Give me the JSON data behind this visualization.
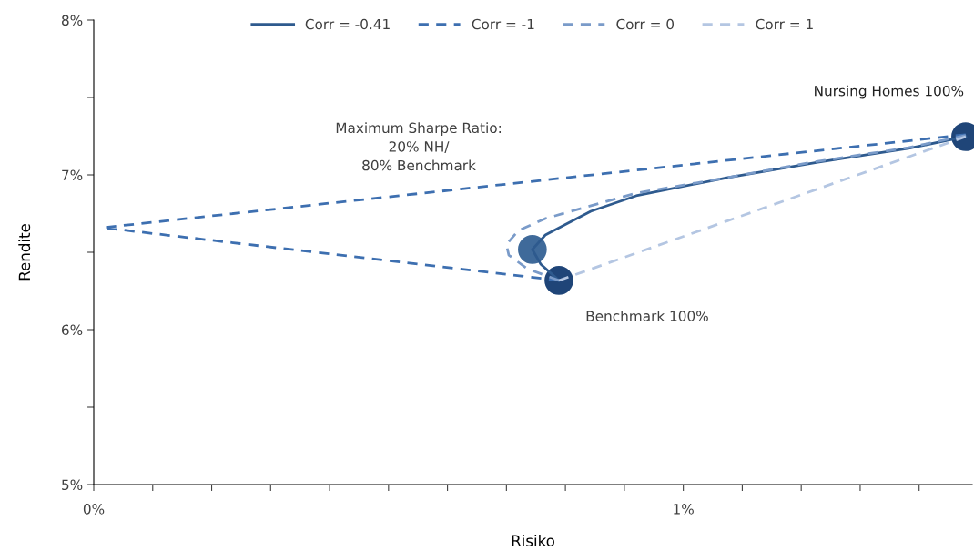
{
  "chart_data": {
    "type": "line",
    "xlabel": "Risiko",
    "ylabel": "Rendite",
    "xlim": [
      0,
      1.49
    ],
    "ylim": [
      5,
      8
    ],
    "xticks": [
      {
        "value": 0,
        "label": "0%"
      },
      {
        "value": 0.1,
        "label": null
      },
      {
        "value": 0.2,
        "label": null
      },
      {
        "value": 0.3,
        "label": null
      },
      {
        "value": 0.4,
        "label": null
      },
      {
        "value": 0.5,
        "label": null
      },
      {
        "value": 0.6,
        "label": null
      },
      {
        "value": 0.7,
        "label": null
      },
      {
        "value": 0.8,
        "label": null
      },
      {
        "value": 0.9,
        "label": null
      },
      {
        "value": 1,
        "label": "1%"
      },
      {
        "value": 1.1,
        "label": null
      },
      {
        "value": 1.2,
        "label": null
      },
      {
        "value": 1.3,
        "label": null
      },
      {
        "value": 1.4,
        "label": null
      }
    ],
    "yticks": [
      {
        "value": 5,
        "label": "5%"
      },
      {
        "value": 5.5,
        "label": null
      },
      {
        "value": 6,
        "label": "6%"
      },
      {
        "value": 6.5,
        "label": null
      },
      {
        "value": 7,
        "label": "7%"
      },
      {
        "value": 7.5,
        "label": null
      },
      {
        "value": 8,
        "label": "8%"
      }
    ],
    "grid": false,
    "legend": "top",
    "series": [
      {
        "name": "Corr = -0.41",
        "color": "#2e5a8e",
        "line_style": "solid",
        "marker": "none",
        "x": [
          0.789,
          0.758,
          0.744,
          0.766,
          0.843,
          0.92,
          1.074,
          1.228,
          1.382,
          1.479
        ],
        "values": [
          6.318,
          6.424,
          6.518,
          6.612,
          6.765,
          6.865,
          6.982,
          7.082,
          7.171,
          7.247
        ]
      },
      {
        "name": "Corr = -1",
        "color": "#3d6fb0",
        "line_style": "dashed",
        "marker": "none",
        "x": [
          0.789,
          0.015,
          1.479
        ],
        "values": [
          6.318,
          6.659,
          7.26
        ]
      },
      {
        "name": "Corr = 0",
        "color": "#7a9bc9",
        "line_style": "dashed",
        "marker": "none",
        "x": [
          0.789,
          0.735,
          0.704,
          0.7,
          0.72,
          0.766,
          0.92,
          1.074,
          1.228,
          1.382,
          1.479
        ],
        "values": [
          6.318,
          6.394,
          6.482,
          6.55,
          6.64,
          6.718,
          6.882,
          6.982,
          7.088,
          7.176,
          7.255
        ]
      },
      {
        "name": "Corr = 1",
        "color": "#b4c6e2",
        "line_style": "dashed",
        "marker": "none",
        "x": [
          0.789,
          1.479
        ],
        "values": [
          6.318,
          7.247
        ]
      },
      {
        "type": "scatter",
        "marker": "circle",
        "colors": [
          "#1f4578",
          "#3f6a9a",
          "#1f4578"
        ],
        "x": [
          0.789,
          0.744,
          1.479
        ],
        "values": [
          6.318,
          6.518,
          7.247
        ]
      }
    ],
    "annotations": [
      "Nursing Homes 100%",
      "Benchmark 100%",
      "Maximum Sharpe Ratio:\n20% NH/\n80% Benchmark"
    ]
  }
}
